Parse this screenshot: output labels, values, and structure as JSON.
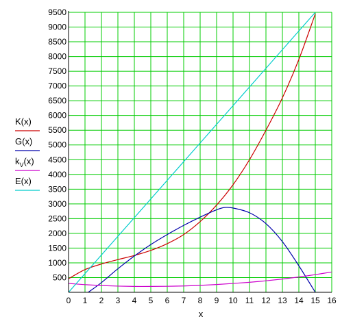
{
  "chart_data": {
    "type": "line",
    "xlabel": "x",
    "ylabel": "",
    "xlim": [
      0,
      16
    ],
    "ylim": [
      0,
      9500
    ],
    "x_ticks": [
      0,
      1,
      2,
      3,
      4,
      5,
      6,
      7,
      8,
      9,
      10,
      11,
      12,
      13,
      14,
      15,
      16
    ],
    "y_ticks": [
      500,
      1000,
      1500,
      2000,
      2500,
      3000,
      3500,
      4000,
      4500,
      5000,
      5500,
      6000,
      6500,
      7000,
      7500,
      8000,
      8500,
      9000,
      9500
    ],
    "grid": true,
    "grid_color": "#00cc00",
    "legend_position": "left",
    "series": [
      {
        "name": "K(x)",
        "color": "#cc0000",
        "x": [
          0,
          1,
          2,
          3,
          4,
          5,
          6,
          7,
          8,
          9,
          10,
          11,
          12,
          13,
          14,
          15
        ],
        "y": [
          460,
          770,
          960,
          1110,
          1250,
          1420,
          1650,
          1960,
          2400,
          2960,
          3650,
          4500,
          5500,
          6600,
          7900,
          9450
        ]
      },
      {
        "name": "G(x)",
        "color": "#0000aa",
        "x": [
          1.2,
          2,
          3,
          4,
          5,
          6,
          7,
          8,
          9,
          9.5,
          10,
          11,
          12,
          13,
          14,
          15
        ],
        "y": [
          0,
          330,
          800,
          1230,
          1620,
          1960,
          2270,
          2550,
          2800,
          2880,
          2860,
          2700,
          2330,
          1720,
          900,
          0
        ]
      },
      {
        "name": "k_V(x)",
        "label": "k",
        "sub": "V",
        "suffix": "(x)",
        "color": "#cc00cc",
        "x": [
          0,
          1,
          2,
          3,
          4,
          5,
          6,
          7,
          8,
          9,
          10,
          11,
          12,
          13,
          14,
          15,
          16
        ],
        "y": [
          300,
          260,
          230,
          210,
          200,
          200,
          205,
          215,
          235,
          265,
          300,
          340,
          390,
          450,
          520,
          600,
          690
        ]
      },
      {
        "name": "E(x)",
        "color": "#00cccc",
        "x": [
          0,
          15
        ],
        "y": [
          0,
          9500
        ]
      }
    ]
  }
}
